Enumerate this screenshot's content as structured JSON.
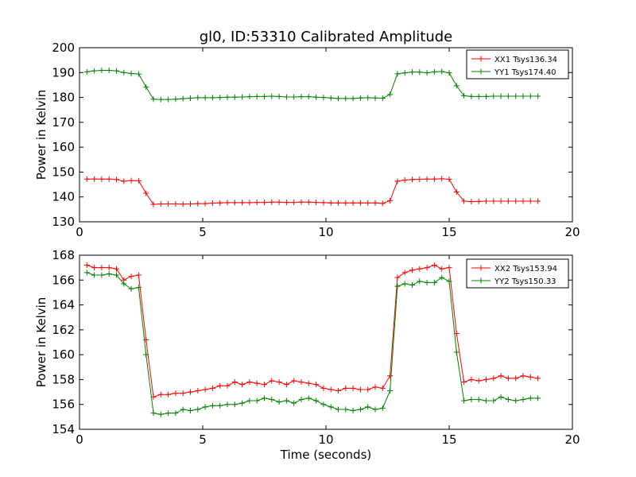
{
  "chart_data": [
    {
      "type": "line",
      "title": "gl0, ID:53310 Calibrated Amplitude",
      "xlabel": "",
      "ylabel": "Power in Kelvin",
      "xlim": [
        0,
        20
      ],
      "ylim": [
        130,
        200
      ],
      "xticks": [
        "0",
        "5",
        "10",
        "15",
        "20"
      ],
      "yticks": [
        "130",
        "140",
        "150",
        "160",
        "170",
        "180",
        "190",
        "200"
      ],
      "legend_position": "top-right",
      "x": [
        0.3,
        0.6,
        0.9,
        1.2,
        1.5,
        1.8,
        2.1,
        2.4,
        2.7,
        3.0,
        3.3,
        3.6,
        3.9,
        4.2,
        4.5,
        4.8,
        5.1,
        5.4,
        5.7,
        6.0,
        6.3,
        6.6,
        6.9,
        7.2,
        7.5,
        7.8,
        8.1,
        8.4,
        8.7,
        9.0,
        9.3,
        9.6,
        9.9,
        10.2,
        10.5,
        10.8,
        11.1,
        11.4,
        11.7,
        12.0,
        12.3,
        12.6,
        12.9,
        13.2,
        13.5,
        13.8,
        14.1,
        14.4,
        14.7,
        15.0,
        15.3,
        15.6,
        15.9,
        16.2,
        16.5,
        16.8,
        17.1,
        17.4,
        17.7,
        18.0,
        18.3,
        18.6
      ],
      "series": [
        {
          "name": "XX1 Tsys136.34",
          "color": "#ff0000",
          "values": [
            147.2,
            147.2,
            147.2,
            147.2,
            147.0,
            146.3,
            146.6,
            146.5,
            141.5,
            137.0,
            137.2,
            137.2,
            137.2,
            137.1,
            137.2,
            137.3,
            137.3,
            137.5,
            137.6,
            137.7,
            137.7,
            137.7,
            137.7,
            137.8,
            137.8,
            137.9,
            137.9,
            137.8,
            137.8,
            137.9,
            137.9,
            137.8,
            137.7,
            137.6,
            137.6,
            137.6,
            137.6,
            137.6,
            137.6,
            137.6,
            137.4,
            138.5,
            146.3,
            146.8,
            147.0,
            147.1,
            147.2,
            147.2,
            147.3,
            147.1,
            142.0,
            138.3,
            138.1,
            138.2,
            138.3,
            138.3,
            138.3,
            138.3,
            138.3,
            138.3,
            138.3,
            138.3
          ]
        },
        {
          "name": "YY1 Tsys174.40",
          "color": "#008000",
          "values": [
            190.3,
            190.7,
            190.9,
            190.9,
            190.7,
            190.0,
            189.6,
            189.4,
            184.2,
            179.3,
            179.2,
            179.2,
            179.3,
            179.5,
            179.7,
            179.9,
            179.9,
            179.9,
            180.0,
            180.1,
            180.1,
            180.2,
            180.3,
            180.4,
            180.4,
            180.5,
            180.4,
            180.2,
            180.2,
            180.3,
            180.3,
            180.1,
            180.0,
            179.8,
            179.6,
            179.6,
            179.6,
            179.8,
            179.9,
            179.8,
            179.7,
            181.2,
            189.5,
            189.9,
            190.2,
            190.2,
            189.9,
            190.3,
            190.4,
            189.9,
            184.7,
            180.7,
            180.4,
            180.4,
            180.4,
            180.5,
            180.5,
            180.5,
            180.5,
            180.5,
            180.5,
            180.5
          ]
        }
      ]
    },
    {
      "type": "line",
      "title": "",
      "xlabel": "Time (seconds)",
      "ylabel": "Power in Kelvin",
      "xlim": [
        0,
        20
      ],
      "ylim": [
        154,
        168
      ],
      "xticks": [
        "0",
        "5",
        "10",
        "15",
        "20"
      ],
      "yticks": [
        "154",
        "156",
        "158",
        "160",
        "162",
        "164",
        "166",
        "168"
      ],
      "legend_position": "top-right",
      "x": [
        0.3,
        0.6,
        0.9,
        1.2,
        1.5,
        1.8,
        2.1,
        2.4,
        2.7,
        3.0,
        3.3,
        3.6,
        3.9,
        4.2,
        4.5,
        4.8,
        5.1,
        5.4,
        5.7,
        6.0,
        6.3,
        6.6,
        6.9,
        7.2,
        7.5,
        7.8,
        8.1,
        8.4,
        8.7,
        9.0,
        9.3,
        9.6,
        9.9,
        10.2,
        10.5,
        10.8,
        11.1,
        11.4,
        11.7,
        12.0,
        12.3,
        12.6,
        12.9,
        13.2,
        13.5,
        13.8,
        14.1,
        14.4,
        14.7,
        15.0,
        15.3,
        15.6,
        15.9,
        16.2,
        16.5,
        16.8,
        17.1,
        17.4,
        17.7,
        18.0,
        18.3,
        18.6
      ],
      "series": [
        {
          "name": "XX2 Tsys153.94",
          "color": "#ff0000",
          "values": [
            167.2,
            167.0,
            167.0,
            167.0,
            166.9,
            166.0,
            166.3,
            166.4,
            161.2,
            156.6,
            156.8,
            156.8,
            156.9,
            156.9,
            157.0,
            157.1,
            157.2,
            157.3,
            157.5,
            157.5,
            157.8,
            157.6,
            157.8,
            157.7,
            157.6,
            157.9,
            157.8,
            157.6,
            157.9,
            157.8,
            157.7,
            157.6,
            157.3,
            157.2,
            157.1,
            157.3,
            157.3,
            157.2,
            157.2,
            157.4,
            157.3,
            158.3,
            166.2,
            166.6,
            166.8,
            166.9,
            167.0,
            167.2,
            166.9,
            167.0,
            161.7,
            157.8,
            158.0,
            157.9,
            158.0,
            158.1,
            158.3,
            158.1,
            158.1,
            158.3,
            158.2,
            158.1
          ]
        },
        {
          "name": "YY2 Tsys150.33",
          "color": "#008000",
          "values": [
            166.6,
            166.4,
            166.4,
            166.5,
            166.4,
            165.7,
            165.3,
            165.4,
            160.0,
            155.3,
            155.2,
            155.3,
            155.3,
            155.6,
            155.5,
            155.6,
            155.8,
            155.9,
            155.9,
            156.0,
            156.0,
            156.1,
            156.3,
            156.3,
            156.5,
            156.4,
            156.2,
            156.3,
            156.1,
            156.4,
            156.5,
            156.3,
            156.0,
            155.8,
            155.6,
            155.6,
            155.5,
            155.6,
            155.8,
            155.6,
            155.7,
            157.1,
            165.5,
            165.7,
            165.6,
            165.9,
            165.8,
            165.8,
            166.2,
            165.9,
            160.2,
            156.3,
            156.4,
            156.4,
            156.3,
            156.3,
            156.6,
            156.4,
            156.3,
            156.4,
            156.5,
            156.5
          ]
        }
      ]
    }
  ]
}
